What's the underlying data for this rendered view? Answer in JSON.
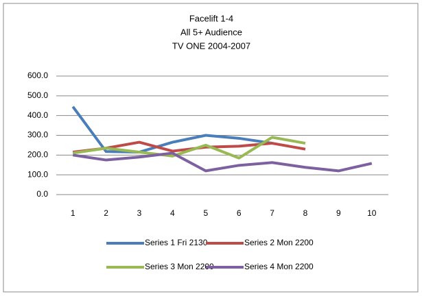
{
  "chart_data": {
    "type": "line",
    "title": [
      "Facelift 1-4",
      "All 5+ Audience",
      "TV ONE 2004-2007"
    ],
    "categories": [
      1,
      2,
      3,
      4,
      5,
      6,
      7,
      8,
      9,
      10
    ],
    "series": [
      {
        "name": "Series 1 Fri 2130",
        "color": "#4a7ebb",
        "values": [
          445,
          218,
          215,
          265,
          300,
          285,
          260,
          null,
          null,
          null
        ]
      },
      {
        "name": "Series 2 Mon 2200",
        "color": "#be4b48",
        "values": [
          215,
          235,
          265,
          220,
          240,
          245,
          260,
          230,
          null,
          null
        ]
      },
      {
        "name": "Series 3 Mon 2200",
        "color": "#98b954",
        "values": [
          210,
          235,
          215,
          195,
          250,
          185,
          290,
          260,
          null,
          null
        ]
      },
      {
        "name": "Series 4 Mon 2200",
        "color": "#7d60a0",
        "values": [
          200,
          175,
          190,
          210,
          120,
          148,
          162,
          138,
          120,
          158
        ]
      }
    ],
    "ylim": [
      0,
      600
    ],
    "yticks": [
      {
        "value": 0,
        "label": "0.0"
      },
      {
        "value": 100,
        "label": "100.0"
      },
      {
        "value": 200,
        "label": "200.0"
      },
      {
        "value": 300,
        "label": "300.0"
      },
      {
        "value": 400,
        "label": "400.0"
      },
      {
        "value": 500,
        "label": "500.0"
      },
      {
        "value": 600,
        "label": "600.0"
      }
    ],
    "grid": true,
    "legend": "bottom"
  }
}
